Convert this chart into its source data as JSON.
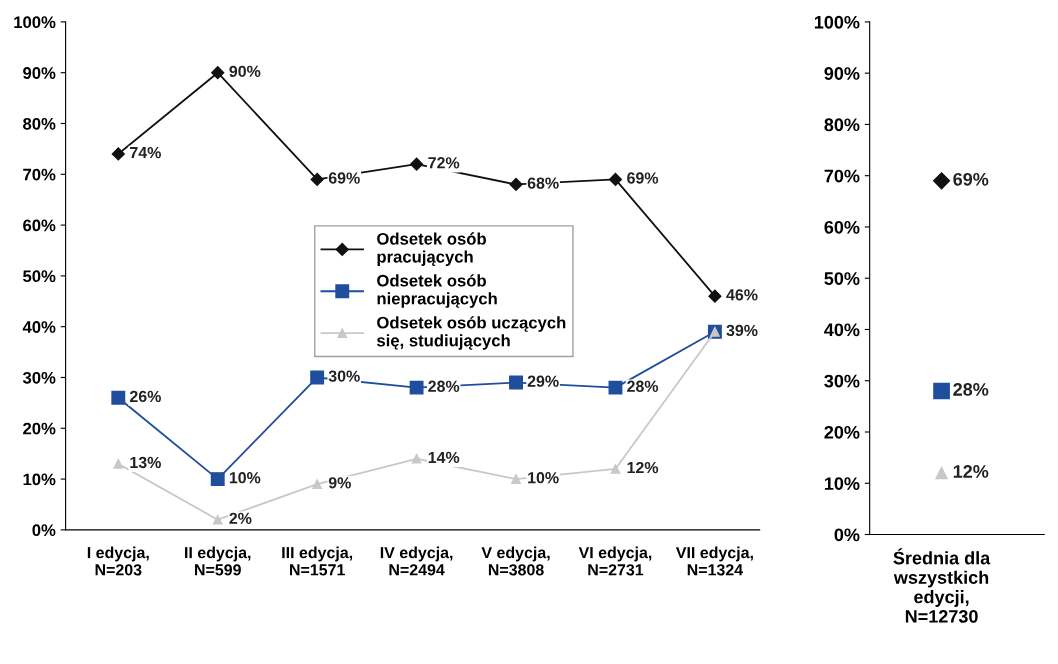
{
  "chart_data": [
    {
      "type": "line",
      "categories": [
        "I edycja,\nN=203",
        "II edycja,\nN=599",
        "III edycja,\nN=1571",
        "IV edycja,\nN=2494",
        "V edycja,\nN=3808",
        "VI edycja,\nN=2731",
        "VII edycja,\nN=1324"
      ],
      "series": [
        {
          "name": "Odsetek osób\npracujących",
          "color": "#111111",
          "marker": "diamond",
          "values": [
            74,
            90,
            69,
            72,
            68,
            69,
            46
          ],
          "value_labels": [
            "74%",
            "90%",
            "69%",
            "72%",
            "68%",
            "69%",
            "46%"
          ]
        },
        {
          "name": "Odsetek osób\nniepracujących",
          "color": "#1f4e9c",
          "marker": "square",
          "values": [
            26,
            10,
            30,
            28,
            29,
            28,
            39
          ],
          "value_labels": [
            "26%",
            "10%",
            "30%",
            "28%",
            "29%",
            "28%",
            null
          ]
        },
        {
          "name": "Odsetek osób uczących\nsię, studiujących",
          "color": "#c8c8c8",
          "marker": "triangle",
          "values": [
            13,
            2,
            9,
            14,
            10,
            12,
            39
          ],
          "value_labels": [
            "13%",
            "2%",
            "9%",
            "14%",
            "10%",
            "12%",
            "39%"
          ]
        }
      ],
      "ylim": [
        0,
        100
      ],
      "yticks": [
        {
          "value": 0,
          "label": "0%"
        },
        {
          "value": 10,
          "label": "10%"
        },
        {
          "value": 20,
          "label": "20%"
        },
        {
          "value": 30,
          "label": "30%"
        },
        {
          "value": 40,
          "label": "40%"
        },
        {
          "value": 50,
          "label": "50%"
        },
        {
          "value": 60,
          "label": "60%"
        },
        {
          "value": 70,
          "label": "70%"
        },
        {
          "value": 80,
          "label": "80%"
        },
        {
          "value": 90,
          "label": "90%"
        },
        {
          "value": 100,
          "label": "100%"
        }
      ],
      "legend": "center",
      "grid": false
    },
    {
      "type": "scatter",
      "categories": [
        "Średnia dla\nwszystkich\nedycji,\nN=12730"
      ],
      "series": [
        {
          "color": "#111111",
          "marker": "diamond",
          "values": [
            69
          ],
          "value_labels": [
            "69%"
          ]
        },
        {
          "color": "#1f4e9c",
          "marker": "square",
          "values": [
            28
          ],
          "value_labels": [
            "28%"
          ]
        },
        {
          "color": "#c8c8c8",
          "marker": "triangle",
          "values": [
            12
          ],
          "value_labels": [
            "12%"
          ]
        }
      ],
      "ylim": [
        0,
        100
      ],
      "yticks": [
        {
          "value": 0,
          "label": "0%"
        },
        {
          "value": 10,
          "label": "10%"
        },
        {
          "value": 20,
          "label": "20%"
        },
        {
          "value": 30,
          "label": "30%"
        },
        {
          "value": 40,
          "label": "40%"
        },
        {
          "value": 50,
          "label": "50%"
        },
        {
          "value": 60,
          "label": "60%"
        },
        {
          "value": 70,
          "label": "70%"
        },
        {
          "value": 80,
          "label": "80%"
        },
        {
          "value": 90,
          "label": "90%"
        },
        {
          "value": 100,
          "label": "100%"
        }
      ],
      "legend": false,
      "grid": false
    }
  ]
}
